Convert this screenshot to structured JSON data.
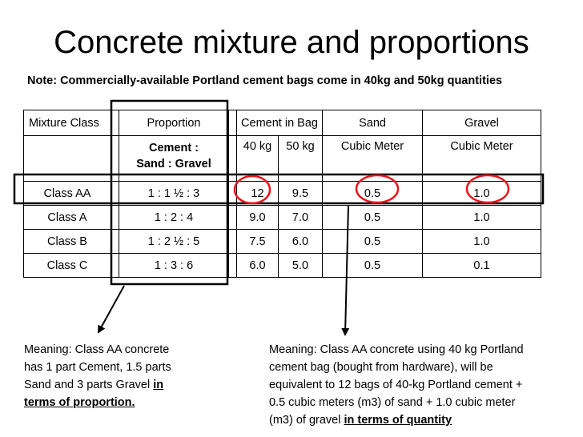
{
  "title": "Concrete mixture and proportions",
  "note": "Note:  Commercially-available Portland cement bags come in 40kg and 50kg quantities",
  "table": {
    "headers": {
      "mixture_class": "Mixture Class",
      "proportion": "Proportion",
      "cement": "Cement in Bag",
      "sand": "Sand",
      "gravel": "Gravel"
    },
    "subheaders": {
      "proportion_line1": "Cement   :",
      "proportion_line2": "Sand  : Gravel",
      "cement_40": "40 kg",
      "cement_50": "50 kg",
      "sand_unit": "Cubic Meter",
      "gravel_unit": "Cubic Meter"
    },
    "rows": [
      {
        "class": "Class AA",
        "proportion": "1 : 1 ½ : 3",
        "c40": "12",
        "c50": "9.5",
        "sand": "0.5",
        "gravel": "1.0"
      },
      {
        "class": "Class A",
        "proportion": "1 : 2 : 4",
        "c40": "9.0",
        "c50": "7.0",
        "sand": "0.5",
        "gravel": "1.0"
      },
      {
        "class": "Class B",
        "proportion": "1 : 2 ½ : 5",
        "c40": "7.5",
        "c50": "6.0",
        "sand": "0.5",
        "gravel": "1.0"
      },
      {
        "class": "Class C",
        "proportion": "1 : 3 : 6",
        "c40": "6.0",
        "c50": "5.0",
        "sand": "0.5",
        "gravel": "0.1"
      }
    ]
  },
  "meaning_left": {
    "line1": "Meaning:  Class AA concrete",
    "line2": "has 1 part Cement, 1.5 parts",
    "line3_text": "Sand and 3 parts Gravel ",
    "line3_emphasis": "in",
    "line4_emphasis": "terms of proportion."
  },
  "meaning_right": {
    "line1": "Meaning:  Class AA concrete using 40 kg  Portland",
    "line2": "cement bag (bought from hardware), will be",
    "line3": "equivalent to 12 bags of 40-kg Portland cement +",
    "line4": "0.5 cubic meters (m3) of sand + 1.0 cubic meter",
    "line5_text": "(m3) of gravel ",
    "line5_emphasis": "in terms of quantity"
  },
  "colors": {
    "highlight_circle": "#e8141b",
    "text": "#000000"
  }
}
